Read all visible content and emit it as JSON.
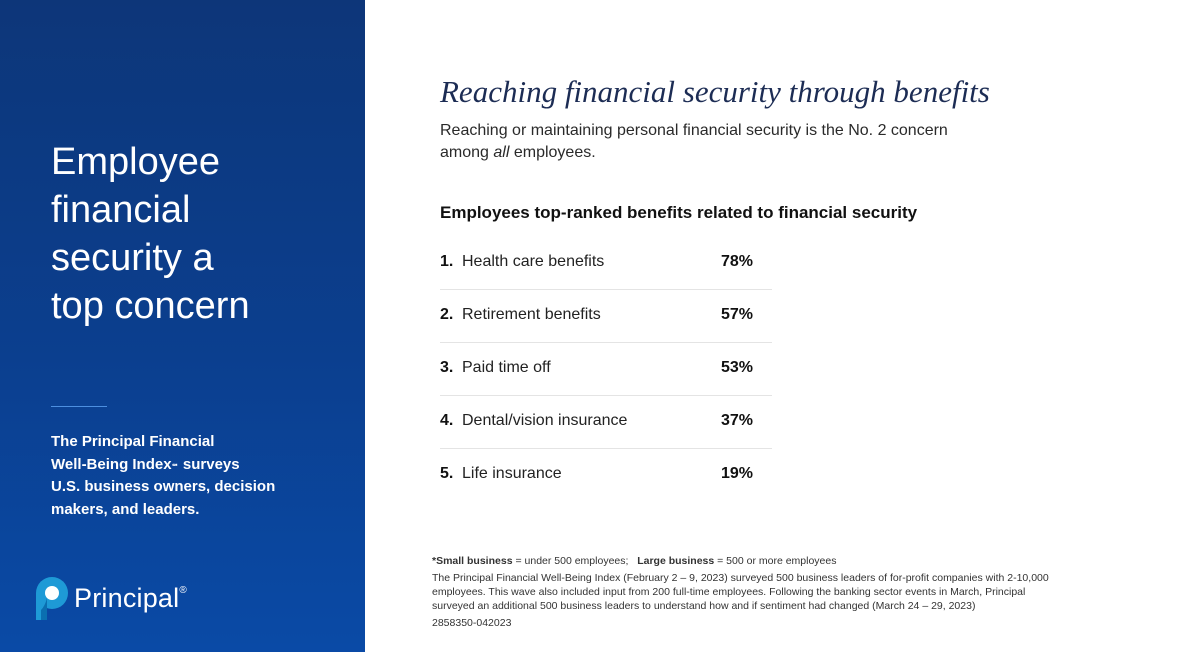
{
  "sidebar": {
    "title_lines": [
      "Employee",
      "financial",
      "security a",
      "top concern"
    ],
    "description_lines": [
      "The Principal Financial",
      "Well-Being Index",
      "℠",
      " surveys",
      "U.S. business owners, decision",
      "makers, and leaders."
    ],
    "logo_text": "Principal",
    "logo_mark": "®",
    "logo_icon": "principal-logo-icon",
    "background_color": "#0b3f8f",
    "accent_color": "#4d8fe0"
  },
  "main": {
    "title": "Reaching financial security through benefits",
    "subtitle_line1": "Reaching or maintaining personal financial security is the No. 2 concern",
    "subtitle_line2_pre": "among ",
    "subtitle_line2_em": "all",
    "subtitle_line2_post": " employees.",
    "list_heading": "Employees top-ranked benefits related to financial security",
    "benefits": [
      {
        "rank": "1.",
        "label": "Health care benefits",
        "percent": "78%"
      },
      {
        "rank": "2.",
        "label": "Retirement benefits",
        "percent": "57%"
      },
      {
        "rank": "3.",
        "label": "Paid time off",
        "percent": "53%"
      },
      {
        "rank": "4.",
        "label": "Dental/vision insurance",
        "percent": "37%"
      },
      {
        "rank": "5.",
        "label": "Life insurance",
        "percent": "19%"
      }
    ]
  },
  "footnote": {
    "small_label": "*Small business",
    "small_value": " = under 500 employees;",
    "large_label": "Large business",
    "large_value": " = 500 or more employees",
    "body_lines": [
      "The Principal Financial Well-Being Index (February 2 – 9, 2023) surveyed 500 business leaders of for-profit companies with 2-10,000",
      "employees. This wave also included input from 200 full-time employees. Following the banking sector events in March, Principal",
      "surveyed an additional 500 business leaders to understand how and if sentiment had changed (March 24 – 29, 2023)"
    ],
    "code": "2858350-042023"
  }
}
